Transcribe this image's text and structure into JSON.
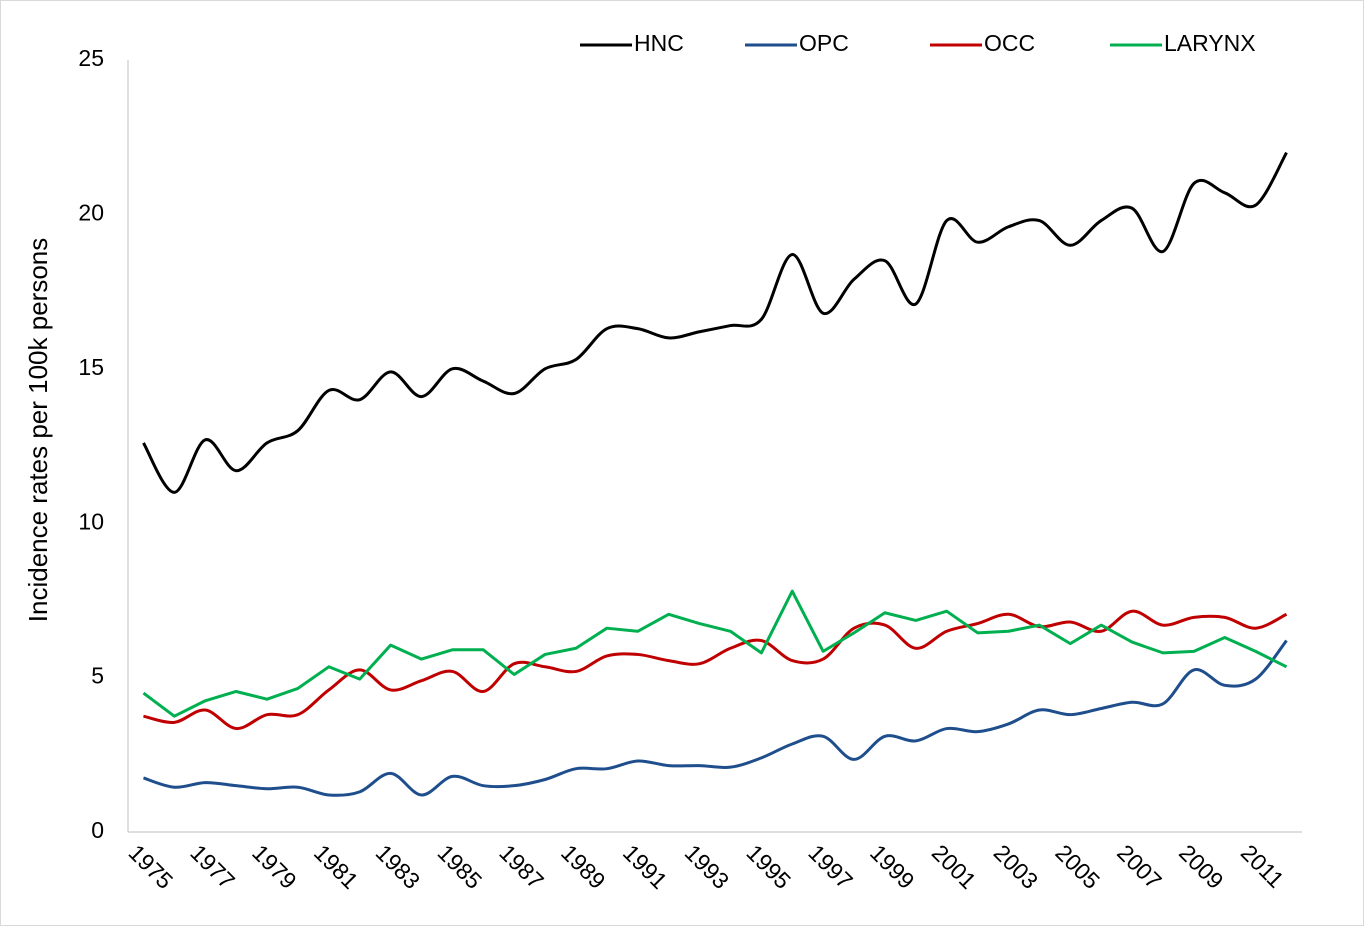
{
  "chart_data": {
    "type": "line",
    "y_label": "Incidence rates per 100k persons",
    "categories": [
      "1975",
      null,
      "1977",
      null,
      "1979",
      null,
      "1981",
      null,
      "1983",
      null,
      "1985",
      null,
      "1987",
      null,
      "1989",
      null,
      "1991",
      null,
      "1993",
      null,
      "1995",
      null,
      "1997",
      null,
      "1999",
      null,
      "2001",
      null,
      "2003",
      null,
      "2005",
      null,
      "2007",
      null,
      "2009",
      null,
      "2011",
      null
    ],
    "series": [
      {
        "name": "HNC",
        "color": "#000000",
        "smooth": true,
        "values": [
          12.6,
          11.0,
          12.7,
          11.7,
          12.6,
          13.0,
          14.3,
          14.0,
          14.9,
          14.1,
          15.0,
          14.6,
          14.2,
          15.0,
          15.3,
          16.3,
          16.3,
          16.0,
          16.2,
          16.4,
          16.6,
          18.7,
          16.8,
          17.9,
          18.5,
          17.1,
          19.8,
          19.1,
          19.6,
          19.8,
          19.0,
          19.8,
          20.2,
          18.8,
          21.0,
          20.7,
          20.3,
          22.0
        ]
      },
      {
        "name": "OPC",
        "color": "#1f4e8c",
        "smooth": true,
        "values": [
          1.75,
          1.45,
          1.6,
          1.5,
          1.4,
          1.45,
          1.2,
          1.3,
          1.9,
          1.2,
          1.8,
          1.5,
          1.5,
          1.7,
          2.05,
          2.05,
          2.3,
          2.15,
          2.15,
          2.1,
          2.4,
          2.85,
          3.1,
          2.35,
          3.1,
          2.95,
          3.35,
          3.25,
          3.5,
          3.95,
          3.8,
          4.0,
          4.2,
          4.15,
          5.25,
          4.75,
          4.95,
          6.2
        ]
      },
      {
        "name": "OCC",
        "color": "#c00000",
        "smooth": true,
        "values": [
          3.75,
          3.55,
          3.95,
          3.35,
          3.8,
          3.8,
          4.6,
          5.25,
          4.6,
          4.9,
          5.2,
          4.55,
          5.45,
          5.35,
          5.2,
          5.7,
          5.75,
          5.55,
          5.45,
          5.95,
          6.2,
          5.55,
          5.6,
          6.6,
          6.7,
          5.95,
          6.5,
          6.75,
          7.05,
          6.65,
          6.8,
          6.5,
          7.15,
          6.7,
          6.95,
          6.95,
          6.6,
          7.05
        ]
      },
      {
        "name": "LARYNX",
        "color": "#00b050",
        "smooth": false,
        "values": [
          4.5,
          3.75,
          4.25,
          4.55,
          4.3,
          4.65,
          5.35,
          4.95,
          6.05,
          5.6,
          5.9,
          5.9,
          5.1,
          5.75,
          5.95,
          6.6,
          6.5,
          7.05,
          6.75,
          6.5,
          5.8,
          7.8,
          5.85,
          6.45,
          7.1,
          6.85,
          7.15,
          6.45,
          6.5,
          6.7,
          6.1,
          6.7,
          6.15,
          5.8,
          5.85,
          6.3,
          5.85,
          5.35
        ]
      }
    ],
    "ylim": [
      0,
      25
    ],
    "yticks": [
      0,
      5,
      10,
      15,
      20,
      25
    ],
    "grid": false,
    "legend": "top"
  }
}
